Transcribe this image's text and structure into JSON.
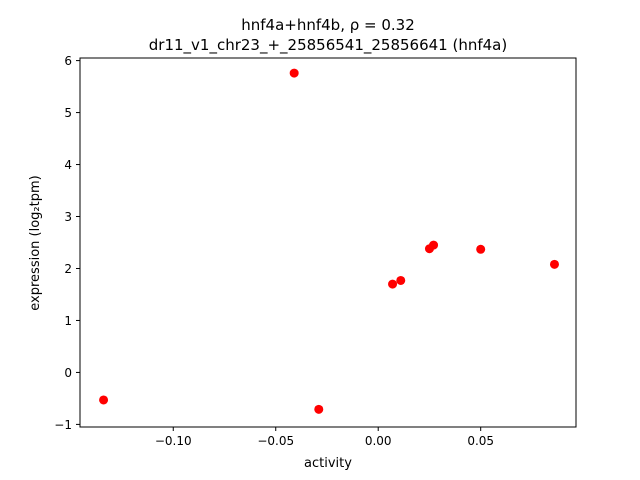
{
  "chart_data": {
    "type": "scatter",
    "title_line1": "hnf4a+hnf4b, ρ = 0.32",
    "title_line2": "dr11_v1_chr23_+_25856541_25856641 (hnf4a)",
    "xlabel": "activity",
    "ylabel": "expression (log₂tpm)",
    "xlim": [
      -0.1455,
      0.0965
    ],
    "ylim": [
      -1.05,
      6.05
    ],
    "xticks": [
      {
        "value": -0.1,
        "label": "−0.10"
      },
      {
        "value": -0.05,
        "label": "−0.05"
      },
      {
        "value": 0.0,
        "label": "0.00"
      },
      {
        "value": 0.05,
        "label": "0.05"
      }
    ],
    "yticks": [
      {
        "value": -1,
        "label": "−1"
      },
      {
        "value": 0,
        "label": "0"
      },
      {
        "value": 1,
        "label": "1"
      },
      {
        "value": 2,
        "label": "2"
      },
      {
        "value": 3,
        "label": "3"
      },
      {
        "value": 4,
        "label": "4"
      },
      {
        "value": 5,
        "label": "5"
      },
      {
        "value": 6,
        "label": "6"
      }
    ],
    "grid": false,
    "marker_color": "#ff0000",
    "points": [
      {
        "x": -0.134,
        "y": -0.53
      },
      {
        "x": -0.041,
        "y": 5.76
      },
      {
        "x": -0.029,
        "y": -0.71
      },
      {
        "x": 0.007,
        "y": 1.7
      },
      {
        "x": 0.011,
        "y": 1.77
      },
      {
        "x": 0.025,
        "y": 2.38
      },
      {
        "x": 0.027,
        "y": 2.45
      },
      {
        "x": 0.05,
        "y": 2.37
      },
      {
        "x": 0.086,
        "y": 2.08
      }
    ]
  }
}
